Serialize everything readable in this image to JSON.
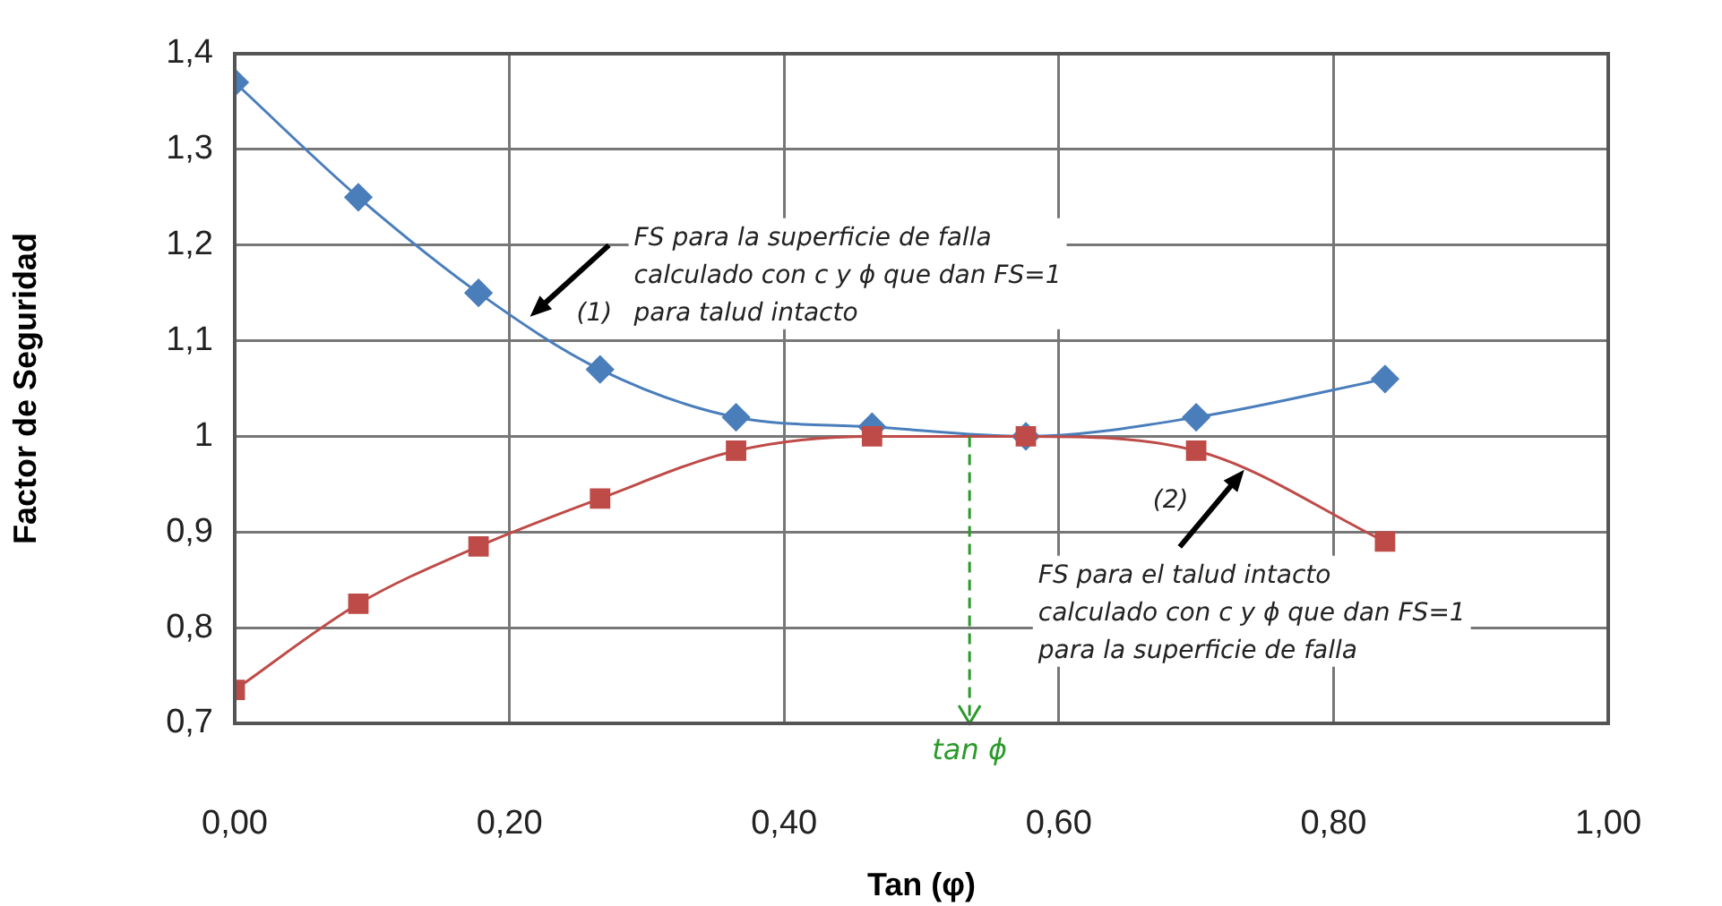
{
  "chart_data": {
    "type": "line",
    "xlabel": "Tan (φ)",
    "ylabel": "Factor de Seguridad",
    "x": [
      0,
      0.09,
      0.1775,
      0.266,
      0.365,
      0.464,
      0.576,
      0.7,
      0.8375
    ],
    "series": [
      {
        "color": "#4a7ebb",
        "marker": "diamond",
        "values": [
          1.37,
          1.25,
          1.15,
          1.07,
          1.02,
          1.01,
          1.0,
          1.02,
          1.06
        ]
      },
      {
        "color": "#be4b48",
        "marker": "square",
        "values": [
          0.735,
          0.825,
          0.885,
          0.935,
          0.985,
          1.0,
          1.0,
          0.985,
          0.89
        ]
      }
    ],
    "xlim": [
      0,
      1
    ],
    "ylim": [
      0.7,
      1.4
    ],
    "xticks": [
      {
        "value": 0,
        "label": "0,00"
      },
      {
        "value": 0.2,
        "label": "0,20"
      },
      {
        "value": 0.4,
        "label": "0,40"
      },
      {
        "value": 0.6,
        "label": "0,60"
      },
      {
        "value": 0.8,
        "label": "0,80"
      },
      {
        "value": 1,
        "label": "1,00"
      }
    ],
    "yticks": [
      {
        "value": 0.7,
        "label": "0,7"
      },
      {
        "value": 0.8,
        "label": "0,8"
      },
      {
        "value": 0.9,
        "label": "0,9"
      },
      {
        "value": 1,
        "label": "1"
      },
      {
        "value": 1.1,
        "label": "1,1"
      },
      {
        "value": 1.2,
        "label": "1,2"
      },
      {
        "value": 1.3,
        "label": "1,3"
      },
      {
        "value": 1.4,
        "label": "1,4"
      }
    ],
    "grid": true,
    "legend": false,
    "ref_lines": [
      {
        "axis": "x",
        "value": 0.535,
        "label": "tan ϕ",
        "color": "#2a9a2a",
        "line_style": "dashed"
      }
    ],
    "annotations": [
      {
        "text": "FS para la superficie de falla\ncalculado con c y ϕ que dan FS=1\npara talud intacto",
        "x": 0.215,
        "y": 1.125
      },
      "(1)",
      {
        "text": "FS para el talud intacto\ncalculado con c y ϕ que dan FS=1\npara la superficie de falla",
        "x": 0.735,
        "y": 0.965
      },
      "(2)"
    ]
  }
}
